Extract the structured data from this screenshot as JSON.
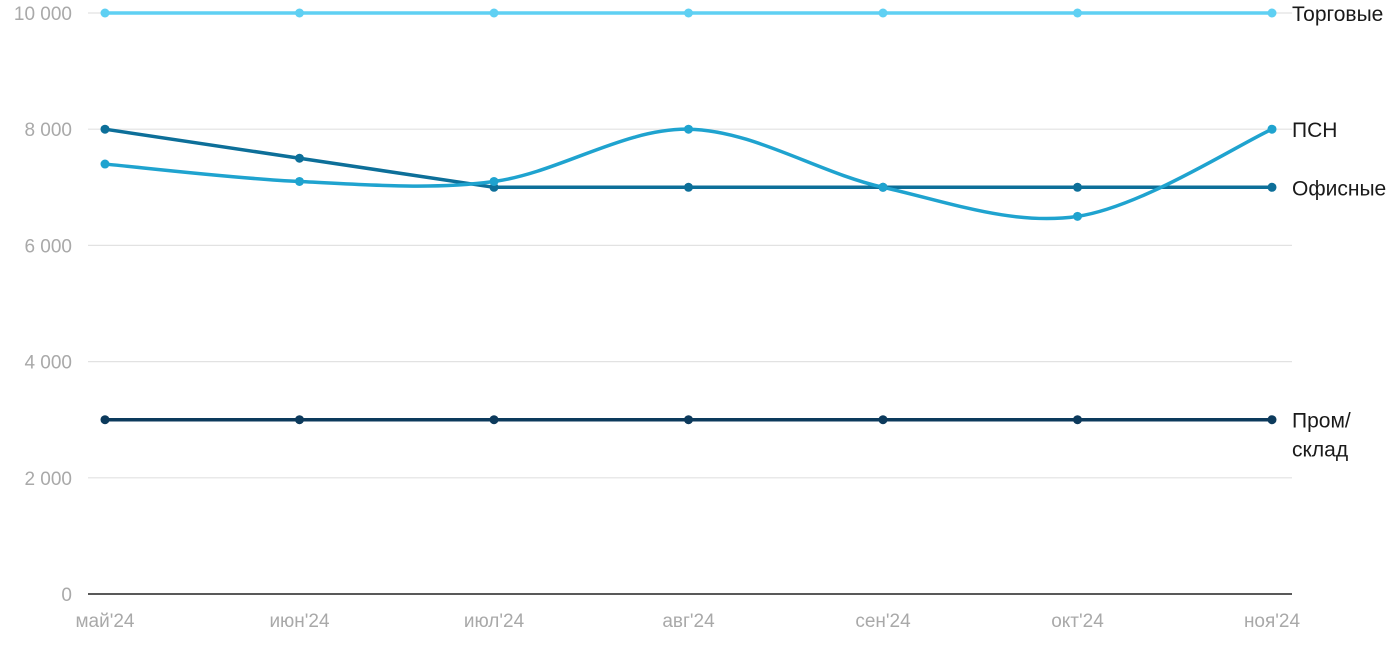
{
  "chart_data": {
    "type": "line",
    "title": "",
    "xlabel": "",
    "ylabel": "",
    "categories": [
      "май'24",
      "июн'24",
      "июл'24",
      "авг'24",
      "сен'24",
      "окт'24",
      "ноя'24"
    ],
    "ylim": [
      0,
      10000
    ],
    "yticks": [
      0,
      2000,
      4000,
      6000,
      8000,
      10000
    ],
    "ytick_labels": [
      "0",
      "2 000",
      "4 000",
      "6 000",
      "8 000",
      "10 000"
    ],
    "grid": true,
    "legend": "direct labels at right end of each line",
    "series": [
      {
        "name": "Торговые",
        "label_lines": [
          "Торговые"
        ],
        "color": "#5fd0f3",
        "smooth": false,
        "values": [
          10000,
          10000,
          10000,
          10000,
          10000,
          10000,
          10000
        ]
      },
      {
        "name": "ПСН",
        "label_lines": [
          "ПСН"
        ],
        "color": "#1fa3cf",
        "smooth": true,
        "values": [
          7400,
          7100,
          7100,
          8000,
          7000,
          6500,
          8000
        ]
      },
      {
        "name": "Офисные",
        "label_lines": [
          "Офисные"
        ],
        "color": "#0d6f99",
        "smooth": false,
        "values": [
          8000,
          7500,
          7000,
          7000,
          7000,
          7000,
          7000
        ]
      },
      {
        "name": "Пром/ склад",
        "label_lines": [
          "Пром/",
          "склад"
        ],
        "color": "#0c3a5c",
        "smooth": false,
        "values": [
          3000,
          3000,
          3000,
          3000,
          3000,
          3000,
          3000
        ]
      }
    ]
  }
}
